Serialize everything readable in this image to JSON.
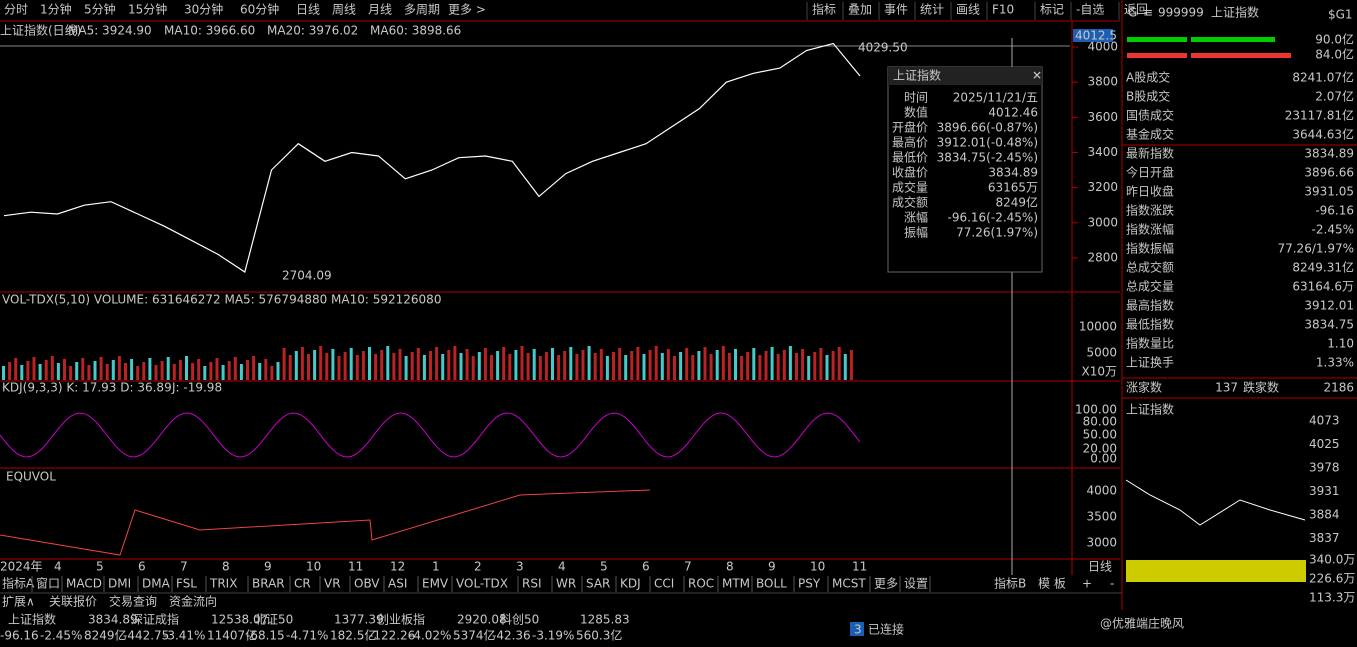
{
  "toolbar": {
    "periods": [
      "分时",
      "1分钟",
      "5分钟",
      "15分钟",
      "30分钟",
      "60分钟",
      "日线",
      "周线",
      "月线",
      "多周期",
      "更多 >"
    ],
    "right": [
      "指标",
      "叠加",
      "事件",
      "统计",
      "画线",
      "F10",
      "标记",
      "-自选",
      "返回"
    ]
  },
  "chart": {
    "legend": [
      "上证指数(日线)",
      "MA5: 3924.90",
      "MA10: 3966.60",
      "MA20: 3976.02",
      "MA60: 3898.66"
    ],
    "price_series": [
      3040,
      3060,
      3050,
      3100,
      3120,
      3050,
      2980,
      2900,
      2820,
      2720,
      3300,
      3450,
      3350,
      3400,
      3380,
      3250,
      3300,
      3370,
      3380,
      3350,
      3150,
      3280,
      3350,
      3400,
      3450,
      3550,
      3650,
      3800,
      3850,
      3880,
      3980,
      4020,
      3835
    ],
    "ylim": [
      2606,
      4040
    ],
    "yticks": [
      4000,
      3800,
      3600,
      3400,
      3200,
      3000,
      2800
    ],
    "current": "4012.5",
    "high_label": "4029.50",
    "low_label": "2704.09"
  },
  "tooltip": {
    "title": "上证指数",
    "rows": [
      [
        "时间",
        "2025/11/21/五"
      ],
      [
        "数值",
        "4012.46"
      ],
      [
        "开盘价",
        "3896.66(-0.87%)"
      ],
      [
        "最高价",
        "3912.01(-0.48%)"
      ],
      [
        "最低价",
        "3834.75(-2.45%)"
      ],
      [
        "收盘价",
        "3834.89"
      ],
      [
        "成交量",
        "63165万"
      ],
      [
        "成交额",
        "8249亿"
      ],
      [
        "涨幅",
        "-96.16(-2.45%)"
      ],
      [
        "振幅",
        "77.26(1.97%)"
      ]
    ]
  },
  "volume": {
    "legend": "VOL-TDX(5,10) VOLUME: 631646272 MA5: 576794880 MA10: 592126080",
    "axis": [
      "10000",
      "5000",
      "X10万"
    ]
  },
  "kdj": {
    "legend": "KDJ(9,3,3) K: 17.93 D: 36.89",
    "j": "J: -19.98",
    "axis": [
      "100.00",
      "80.00",
      "50.00",
      "20.00",
      "0.00"
    ]
  },
  "equvol": {
    "legend": "EQUVOL",
    "axis": [
      "4000",
      "3500",
      "3000"
    ]
  },
  "xaxis": [
    "2024年",
    "4",
    "5",
    "6",
    "7",
    "8",
    "9",
    "10",
    "11",
    "12",
    "1",
    "2",
    "3",
    "4",
    "5",
    "6",
    "7",
    "8",
    "9",
    "10",
    "11"
  ],
  "x_tag": "日线",
  "indicators": [
    "指标A",
    "窗口",
    "MACD",
    "DMI",
    "DMA",
    "FSL",
    "TRIX",
    "BRAR",
    "CR",
    "VR",
    "OBV",
    "ASI",
    "EMV",
    "VOL-TDX",
    "RSI",
    "WR",
    "SAR",
    "KDJ",
    "CCI",
    "ROC",
    "MTM",
    "BOLL",
    "PSY",
    "MCST",
    "更多",
    "设置"
  ],
  "indicators_right": [
    "指标B",
    "模 板",
    "+",
    "-"
  ],
  "bottom_tabs": [
    "扩展∧",
    "关联报价",
    "交易查询",
    "资金流向"
  ],
  "ticker": [
    [
      "上证指数",
      "3834.89",
      "-96.16",
      "-2.45%",
      "8249亿"
    ],
    [
      "深证成指",
      "12538.07",
      "-442.75",
      "-3.41%",
      "11407亿"
    ],
    [
      "北证50",
      "1377.39",
      "-68.15",
      "-4.71%",
      "182.5亿"
    ],
    [
      "创业板指",
      "2920.08",
      "-122.26",
      "-4.02%",
      "5374亿"
    ],
    [
      "科创50",
      "1285.83",
      "-42.36",
      "-3.19%",
      "560.3亿"
    ]
  ],
  "status": {
    "num": "3",
    "text": "已连接"
  },
  "panel": {
    "header": [
      "G",
      "≡",
      "999999",
      "上证指数",
      "$G1"
    ],
    "bars": [
      "90.0亿",
      "84.0亿"
    ],
    "rows": [
      [
        "A股成交",
        "8241.07亿"
      ],
      [
        "B股成交",
        "2.07亿"
      ],
      [
        "国债成交",
        "23117.81亿"
      ],
      [
        "基金成交",
        "3644.63亿"
      ],
      [
        "最新指数",
        "3834.89"
      ],
      [
        "今日开盘",
        "3896.66"
      ],
      [
        "昨日收盘",
        "3931.05"
      ],
      [
        "指数涨跌",
        "-96.16"
      ],
      [
        "指数涨幅",
        "-2.45%"
      ],
      [
        "指数振幅",
        "77.26/1.97%"
      ],
      [
        "总成交额",
        "8249.31亿"
      ],
      [
        "总成交量",
        "63164.6万"
      ],
      [
        "最高指数",
        "3912.01"
      ],
      [
        "最低指数",
        "3834.75"
      ],
      [
        "指数量比",
        "1.10"
      ],
      [
        "上证换手",
        "1.33%"
      ]
    ],
    "updown": [
      "涨家数",
      "137",
      "跌家数",
      "2186"
    ],
    "mini_title": "上证指数",
    "mini_axis": [
      "4073",
      "4025",
      "3978",
      "3931",
      "3884",
      "3837",
      "340.0万",
      "226.6万",
      "113.3万"
    ]
  },
  "watermark": "@优雅端庄晚风"
}
